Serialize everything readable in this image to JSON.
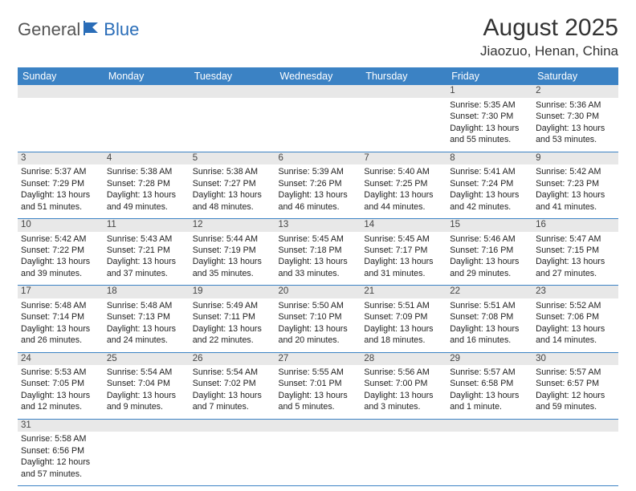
{
  "brand": {
    "part1": "General",
    "part2": "Blue"
  },
  "title": "August 2025",
  "location": "Jiaozuo, Henan, China",
  "colors": {
    "header_bg": "#3b82c4",
    "header_text": "#ffffff",
    "daynum_bg": "#e8e8e8",
    "border": "#3b82c4",
    "brand_gray": "#555555",
    "brand_blue": "#2a6db8"
  },
  "weekdays": [
    "Sunday",
    "Monday",
    "Tuesday",
    "Wednesday",
    "Thursday",
    "Friday",
    "Saturday"
  ],
  "weeks": [
    [
      null,
      null,
      null,
      null,
      null,
      {
        "n": "1",
        "sr": "Sunrise: 5:35 AM",
        "ss": "Sunset: 7:30 PM",
        "dl": "Daylight: 13 hours and 55 minutes."
      },
      {
        "n": "2",
        "sr": "Sunrise: 5:36 AM",
        "ss": "Sunset: 7:30 PM",
        "dl": "Daylight: 13 hours and 53 minutes."
      }
    ],
    [
      {
        "n": "3",
        "sr": "Sunrise: 5:37 AM",
        "ss": "Sunset: 7:29 PM",
        "dl": "Daylight: 13 hours and 51 minutes."
      },
      {
        "n": "4",
        "sr": "Sunrise: 5:38 AM",
        "ss": "Sunset: 7:28 PM",
        "dl": "Daylight: 13 hours and 49 minutes."
      },
      {
        "n": "5",
        "sr": "Sunrise: 5:38 AM",
        "ss": "Sunset: 7:27 PM",
        "dl": "Daylight: 13 hours and 48 minutes."
      },
      {
        "n": "6",
        "sr": "Sunrise: 5:39 AM",
        "ss": "Sunset: 7:26 PM",
        "dl": "Daylight: 13 hours and 46 minutes."
      },
      {
        "n": "7",
        "sr": "Sunrise: 5:40 AM",
        "ss": "Sunset: 7:25 PM",
        "dl": "Daylight: 13 hours and 44 minutes."
      },
      {
        "n": "8",
        "sr": "Sunrise: 5:41 AM",
        "ss": "Sunset: 7:24 PM",
        "dl": "Daylight: 13 hours and 42 minutes."
      },
      {
        "n": "9",
        "sr": "Sunrise: 5:42 AM",
        "ss": "Sunset: 7:23 PM",
        "dl": "Daylight: 13 hours and 41 minutes."
      }
    ],
    [
      {
        "n": "10",
        "sr": "Sunrise: 5:42 AM",
        "ss": "Sunset: 7:22 PM",
        "dl": "Daylight: 13 hours and 39 minutes."
      },
      {
        "n": "11",
        "sr": "Sunrise: 5:43 AM",
        "ss": "Sunset: 7:21 PM",
        "dl": "Daylight: 13 hours and 37 minutes."
      },
      {
        "n": "12",
        "sr": "Sunrise: 5:44 AM",
        "ss": "Sunset: 7:19 PM",
        "dl": "Daylight: 13 hours and 35 minutes."
      },
      {
        "n": "13",
        "sr": "Sunrise: 5:45 AM",
        "ss": "Sunset: 7:18 PM",
        "dl": "Daylight: 13 hours and 33 minutes."
      },
      {
        "n": "14",
        "sr": "Sunrise: 5:45 AM",
        "ss": "Sunset: 7:17 PM",
        "dl": "Daylight: 13 hours and 31 minutes."
      },
      {
        "n": "15",
        "sr": "Sunrise: 5:46 AM",
        "ss": "Sunset: 7:16 PM",
        "dl": "Daylight: 13 hours and 29 minutes."
      },
      {
        "n": "16",
        "sr": "Sunrise: 5:47 AM",
        "ss": "Sunset: 7:15 PM",
        "dl": "Daylight: 13 hours and 27 minutes."
      }
    ],
    [
      {
        "n": "17",
        "sr": "Sunrise: 5:48 AM",
        "ss": "Sunset: 7:14 PM",
        "dl": "Daylight: 13 hours and 26 minutes."
      },
      {
        "n": "18",
        "sr": "Sunrise: 5:48 AM",
        "ss": "Sunset: 7:13 PM",
        "dl": "Daylight: 13 hours and 24 minutes."
      },
      {
        "n": "19",
        "sr": "Sunrise: 5:49 AM",
        "ss": "Sunset: 7:11 PM",
        "dl": "Daylight: 13 hours and 22 minutes."
      },
      {
        "n": "20",
        "sr": "Sunrise: 5:50 AM",
        "ss": "Sunset: 7:10 PM",
        "dl": "Daylight: 13 hours and 20 minutes."
      },
      {
        "n": "21",
        "sr": "Sunrise: 5:51 AM",
        "ss": "Sunset: 7:09 PM",
        "dl": "Daylight: 13 hours and 18 minutes."
      },
      {
        "n": "22",
        "sr": "Sunrise: 5:51 AM",
        "ss": "Sunset: 7:08 PM",
        "dl": "Daylight: 13 hours and 16 minutes."
      },
      {
        "n": "23",
        "sr": "Sunrise: 5:52 AM",
        "ss": "Sunset: 7:06 PM",
        "dl": "Daylight: 13 hours and 14 minutes."
      }
    ],
    [
      {
        "n": "24",
        "sr": "Sunrise: 5:53 AM",
        "ss": "Sunset: 7:05 PM",
        "dl": "Daylight: 13 hours and 12 minutes."
      },
      {
        "n": "25",
        "sr": "Sunrise: 5:54 AM",
        "ss": "Sunset: 7:04 PM",
        "dl": "Daylight: 13 hours and 9 minutes."
      },
      {
        "n": "26",
        "sr": "Sunrise: 5:54 AM",
        "ss": "Sunset: 7:02 PM",
        "dl": "Daylight: 13 hours and 7 minutes."
      },
      {
        "n": "27",
        "sr": "Sunrise: 5:55 AM",
        "ss": "Sunset: 7:01 PM",
        "dl": "Daylight: 13 hours and 5 minutes."
      },
      {
        "n": "28",
        "sr": "Sunrise: 5:56 AM",
        "ss": "Sunset: 7:00 PM",
        "dl": "Daylight: 13 hours and 3 minutes."
      },
      {
        "n": "29",
        "sr": "Sunrise: 5:57 AM",
        "ss": "Sunset: 6:58 PM",
        "dl": "Daylight: 13 hours and 1 minute."
      },
      {
        "n": "30",
        "sr": "Sunrise: 5:57 AM",
        "ss": "Sunset: 6:57 PM",
        "dl": "Daylight: 12 hours and 59 minutes."
      }
    ],
    [
      {
        "n": "31",
        "sr": "Sunrise: 5:58 AM",
        "ss": "Sunset: 6:56 PM",
        "dl": "Daylight: 12 hours and 57 minutes."
      },
      null,
      null,
      null,
      null,
      null,
      null
    ]
  ]
}
